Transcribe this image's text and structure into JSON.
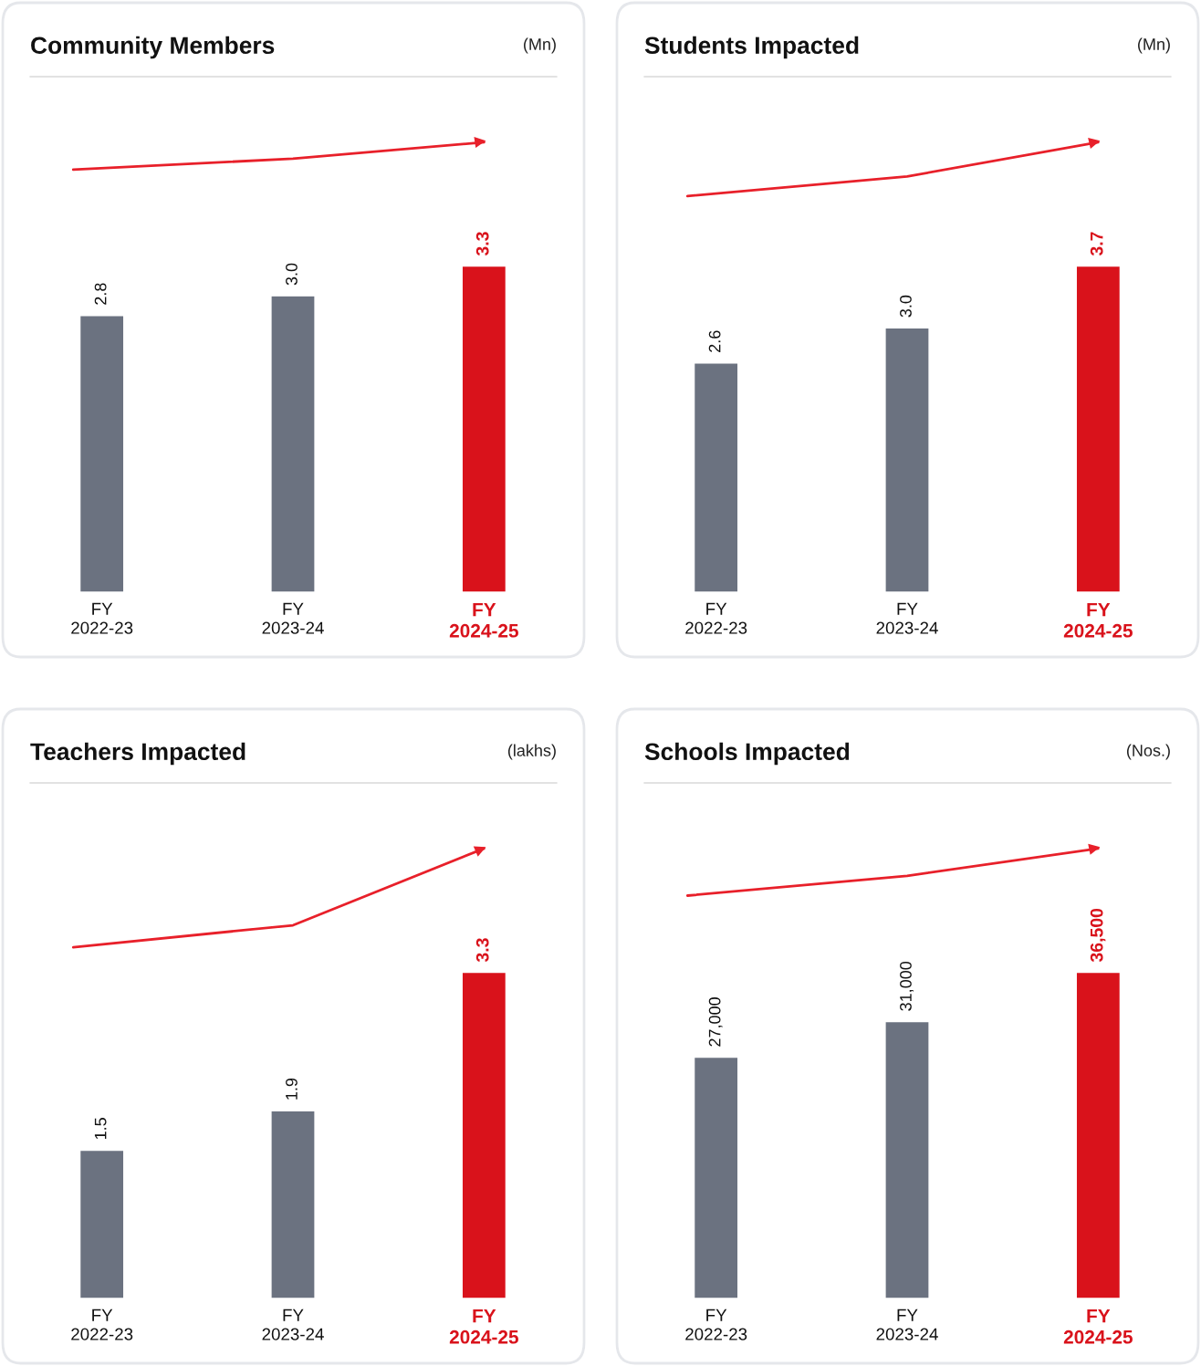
{
  "chart_data": [
    {
      "type": "bar",
      "title": "Community Members",
      "subtitle": "(Mn)",
      "categories": [
        "FY\n2022-23",
        "FY\n2023-24",
        "FY\n2024-25"
      ],
      "values": [
        2.8,
        3.0,
        3.3
      ],
      "value_labels": [
        "2.8",
        "3.0",
        "3.3"
      ],
      "colors": [
        "#6b7280",
        "#6b7280",
        "#d9121b"
      ],
      "legend": false,
      "grid": false
    },
    {
      "type": "bar",
      "title": "Students Impacted",
      "subtitle": "(Mn)",
      "categories": [
        "FY\n2022-23",
        "FY\n2023-24",
        "FY\n2024-25"
      ],
      "values": [
        2.6,
        3.0,
        3.7
      ],
      "value_labels": [
        "2.6",
        "3.0",
        "3.7"
      ],
      "colors": [
        "#6b7280",
        "#6b7280",
        "#d9121b"
      ],
      "legend": false,
      "grid": false
    },
    {
      "type": "bar",
      "title": "Teachers Impacted",
      "subtitle": "(lakhs)",
      "categories": [
        "FY\n2022-23",
        "FY\n2023-24",
        "FY\n2024-25"
      ],
      "values": [
        1.5,
        1.9,
        3.3
      ],
      "value_labels": [
        "1.5",
        "1.9",
        "3.3"
      ],
      "colors": [
        "#6b7280",
        "#6b7280",
        "#d9121b"
      ],
      "legend": false,
      "grid": false
    },
    {
      "type": "bar",
      "title": "Schools Impacted",
      "subtitle": "(Nos.)",
      "categories": [
        "FY\n2022-23",
        "FY\n2023-24",
        "FY\n2024-25"
      ],
      "values": [
        27000,
        31000,
        36500
      ],
      "value_labels": [
        "27,000",
        "31,000",
        "36,500"
      ],
      "colors": [
        "#6b7280",
        "#6b7280",
        "#d9121b"
      ],
      "legend": false,
      "grid": false
    }
  ]
}
